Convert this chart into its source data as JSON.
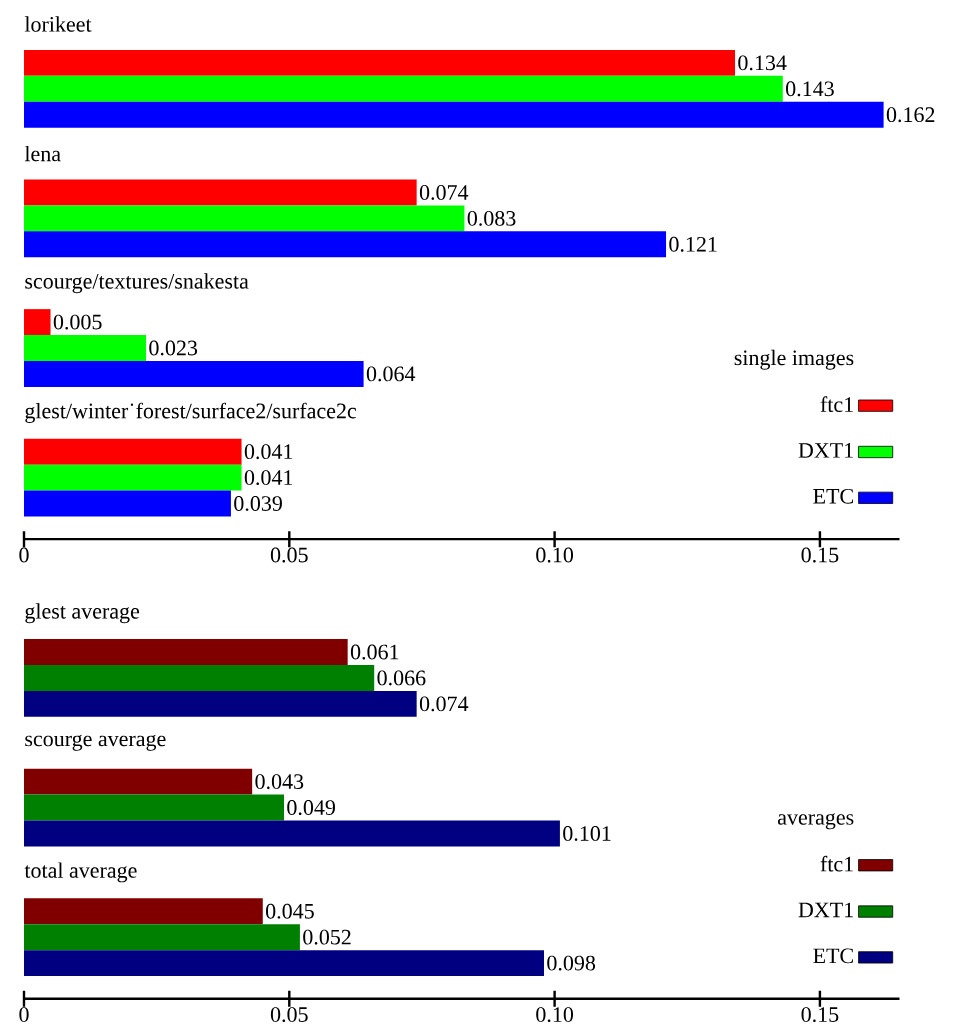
{
  "chart_data": [
    {
      "type": "bar",
      "orientation": "horizontal",
      "legend_title": "single images",
      "legend": "right",
      "data_labels": true,
      "categories": [
        "lorikeet",
        "lena",
        "scourge/textures/snakesta",
        "glest/winter˙forest/surface2/surface2c"
      ],
      "series": [
        {
          "name": "ftc1",
          "color": "#ff0000",
          "values": [
            0.134,
            0.074,
            0.005,
            0.041
          ]
        },
        {
          "name": "DXT1",
          "color": "#00ff00",
          "values": [
            0.143,
            0.083,
            0.023,
            0.041
          ]
        },
        {
          "name": "ETC",
          "color": "#0000ff",
          "values": [
            0.162,
            0.121,
            0.064,
            0.039
          ]
        }
      ],
      "xlim": [
        0,
        0.165
      ],
      "xticks": [
        0,
        0.05,
        {
          "value": 0.1,
          "label": "0.10"
        },
        0.15
      ]
    },
    {
      "type": "bar",
      "orientation": "horizontal",
      "legend_title": "averages",
      "legend": "right",
      "data_labels": true,
      "categories": [
        "glest average",
        "scourge average",
        "total average"
      ],
      "series": [
        {
          "name": "ftc1",
          "color": "#800000",
          "values": [
            0.061,
            0.043,
            0.045
          ]
        },
        {
          "name": "DXT1",
          "color": "#008000",
          "values": [
            0.066,
            0.049,
            0.052
          ]
        },
        {
          "name": "ETC",
          "color": "#000080",
          "values": [
            0.074,
            0.101,
            0.098
          ]
        }
      ],
      "xlim": [
        0,
        0.165
      ],
      "xticks": [
        0,
        0.05,
        {
          "value": 0.1,
          "label": "0.10"
        },
        0.15
      ]
    }
  ]
}
